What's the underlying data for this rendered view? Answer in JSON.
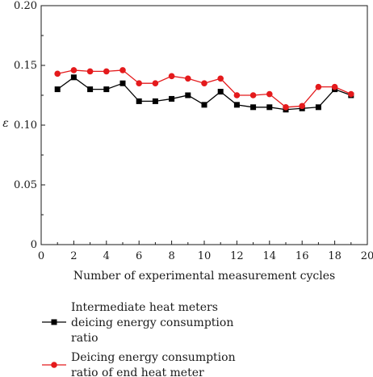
{
  "chart_data": {
    "type": "line",
    "xlabel": "Number of experimental measurement cycles",
    "ylabel": "ε",
    "xlim": [
      0,
      20
    ],
    "ylim": [
      0,
      0.2
    ],
    "x_ticks": [
      "0",
      "2",
      "4",
      "6",
      "8",
      "10",
      "12",
      "14",
      "16",
      "18",
      "20"
    ],
    "y_ticks": [
      "0",
      "0.05",
      "0.10",
      "0.15",
      "0.20"
    ],
    "grid": false,
    "legend_position": "bottom",
    "x": [
      1,
      2,
      3,
      4,
      5,
      6,
      7,
      8,
      9,
      10,
      11,
      12,
      13,
      14,
      15,
      16,
      17,
      18,
      19
    ],
    "series": [
      {
        "name_lines": [
          "Intermediate heat meters",
          "deicing energy consumption",
          "ratio"
        ],
        "color": "#000000",
        "marker": "square",
        "values": [
          0.13,
          0.14,
          0.13,
          0.13,
          0.135,
          0.12,
          0.12,
          0.122,
          0.125,
          0.117,
          0.128,
          0.117,
          0.115,
          0.115,
          0.113,
          0.114,
          0.115,
          0.13,
          0.125
        ]
      },
      {
        "name_lines": [
          "Deicing energy consumption",
          "ratio of end heat meter"
        ],
        "color": "#e41a1c",
        "marker": "circle",
        "values": [
          0.143,
          0.146,
          0.145,
          0.145,
          0.146,
          0.135,
          0.135,
          0.141,
          0.139,
          0.135,
          0.139,
          0.125,
          0.125,
          0.126,
          0.115,
          0.116,
          0.132,
          0.132,
          0.126
        ]
      }
    ]
  }
}
